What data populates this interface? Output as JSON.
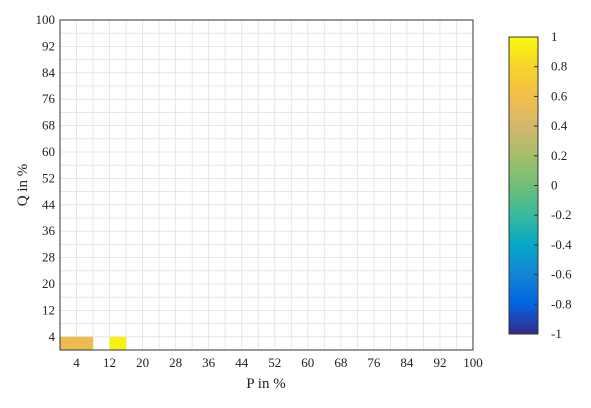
{
  "chart_data": {
    "type": "heatmap",
    "title": "",
    "xlabel": "P in %",
    "ylabel": "Q in %",
    "xlim": [
      0,
      100
    ],
    "ylim": [
      0,
      100
    ],
    "cell_size": 4,
    "xticks": [
      4,
      12,
      20,
      28,
      36,
      44,
      52,
      60,
      68,
      76,
      84,
      92,
      100
    ],
    "yticks": [
      4,
      12,
      20,
      28,
      36,
      44,
      52,
      60,
      68,
      76,
      84,
      92,
      100
    ],
    "colorbar": {
      "range": [
        -1,
        1
      ],
      "colormap": "parula",
      "ticks": [
        -1,
        -0.8,
        -0.6,
        -0.4,
        -0.2,
        0,
        0.2,
        0.4,
        0.6,
        0.8,
        1
      ]
    },
    "cells_note": "each row: [x_start, x_end, y_start, base value]; deviations list [x, y, value]",
    "cells": [
      [
        0,
        4,
        0,
        0.55
      ],
      [
        12,
        12,
        0,
        0.95
      ]
    ]
  }
}
